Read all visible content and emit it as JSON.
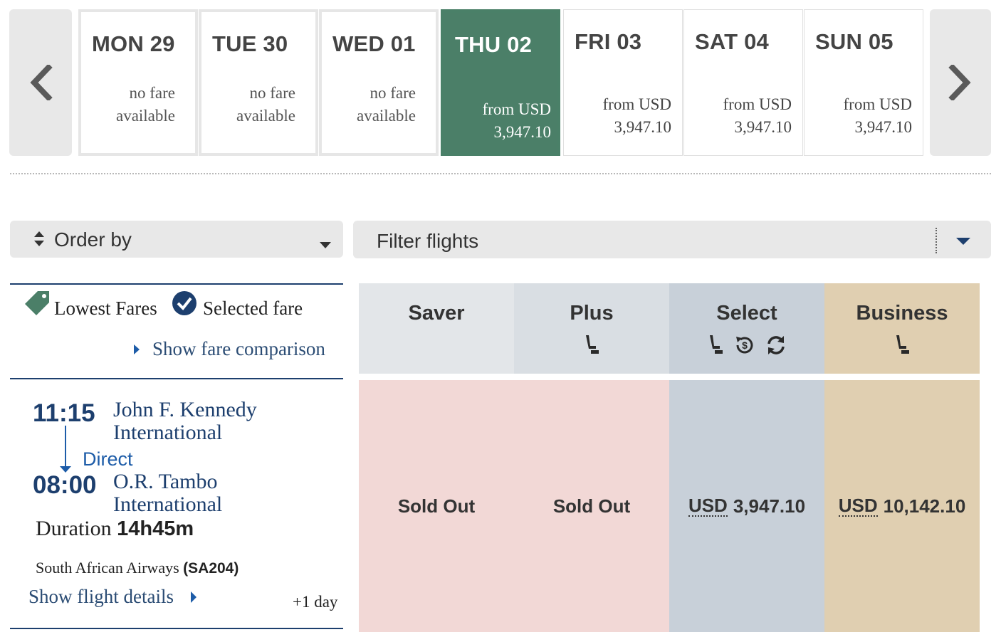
{
  "date_strip": {
    "days": [
      {
        "label": "MON 29",
        "line1": "no fare",
        "line2": "available"
      },
      {
        "label": "TUE 30",
        "line1": "no fare",
        "line2": "available"
      },
      {
        "label": "WED 01",
        "line1": "no fare",
        "line2": "available"
      },
      {
        "label": "THU 02",
        "line1": "from USD",
        "line2": "3,947.10",
        "selected": true
      },
      {
        "label": "FRI 03",
        "line1": "from USD",
        "line2": "3,947.10"
      },
      {
        "label": "SAT 04",
        "line1": "from USD",
        "line2": "3,947.10"
      },
      {
        "label": "SUN 05",
        "line1": "from USD",
        "line2": "3,947.10"
      }
    ],
    "prev_icon": "chevron-left-icon",
    "next_icon": "chevron-right-icon"
  },
  "order_by": {
    "label": "Order by",
    "icon": "sort-icon"
  },
  "filter": {
    "label": "Filter flights",
    "icon": "chevron-down-icon"
  },
  "legend": {
    "lowest_fares": "Lowest Fares",
    "selected_fare": "Selected fare",
    "show_comparison": "Show fare comparison"
  },
  "flight": {
    "departure_time": "11:15",
    "departure_airport": "John F. Kennedy International",
    "arrival_time": "08:00",
    "arrival_airport": "O.R. Tambo International",
    "stops": "Direct",
    "duration_label": "Duration",
    "duration_value": "14h45m",
    "airline": "South African Airways",
    "flight_number": "(SA204)",
    "details_link": "Show flight details",
    "day_offset": "+1 day"
  },
  "fares": [
    {
      "name": "Saver",
      "icons": [],
      "status": "Sold Out",
      "head_color": "#e3e6e9",
      "cell_color": "#f2d8d6"
    },
    {
      "name": "Plus",
      "icons": [
        "seat-icon"
      ],
      "status": "Sold Out",
      "head_color": "#d9dee3",
      "cell_color": "#f2d8d6"
    },
    {
      "name": "Select",
      "icons": [
        "seat-icon",
        "refund-icon",
        "change-icon"
      ],
      "currency": "USD",
      "amount": "3,947.10",
      "head_color": "#c8d0d9",
      "cell_color": "#c8d0d9"
    },
    {
      "name": "Business",
      "icons": [
        "seat-icon"
      ],
      "currency": "USD",
      "amount": "10,142.10",
      "head_color": "#e0cfb1",
      "cell_color": "#e0cfb1"
    }
  ],
  "colors": {
    "selected_day": "#4b7f68",
    "link": "#2b4c74",
    "navy": "#1d3f6e",
    "tag_green": "#4b7f68"
  }
}
